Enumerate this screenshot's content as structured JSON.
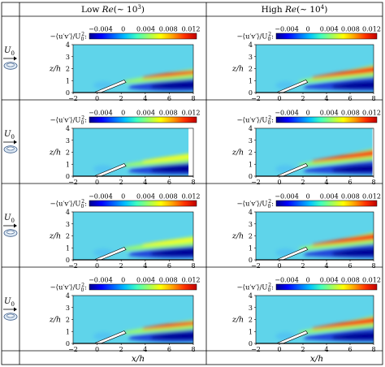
{
  "columns": [
    {
      "prefix": "Low ",
      "re": "Re",
      "tail": "(∼ 10",
      "exp": "3",
      "close": ")"
    },
    {
      "prefix": "High ",
      "re": "Re",
      "tail": "(∼ 10",
      "exp": "4",
      "close": ")"
    }
  ],
  "row_labels": [
    {
      "symbol": "U",
      "sub": "0"
    },
    {
      "symbol": "U",
      "sub": "0"
    },
    {
      "symbol": "U",
      "sub": "0"
    },
    {
      "symbol": "U",
      "sub": "0"
    }
  ],
  "colorbar": {
    "label": "−⟨u′v′⟩/U",
    "label_sub": "0",
    "label_sup": "2",
    "label_colon": ":",
    "ticks": [
      -0.004,
      0,
      0.004,
      0.008,
      0.012
    ],
    "tick_labels": [
      "−0.004",
      "0",
      "0.004",
      "0.008",
      "0.012"
    ],
    "range": [
      -0.006,
      0.013
    ],
    "colors": [
      "#00008f",
      "#0000ff",
      "#0060ff",
      "#00c0ff",
      "#40ffbf",
      "#9fff60",
      "#ffff00",
      "#ff9f00",
      "#ff3000",
      "#bf0000"
    ]
  },
  "xlabel": "x/h",
  "chart_data": [
    {
      "type": "heatmap",
      "row": 1,
      "column": "Low Re(∼10^3)",
      "ylabel": "z/h",
      "xlim": [
        -2,
        8
      ],
      "ylim": [
        0,
        4
      ],
      "xticks": [
        -2,
        0,
        2,
        4,
        6,
        8
      ],
      "yticks": [
        0,
        1,
        2,
        3,
        4
      ],
      "background": 0.0003
    },
    {
      "type": "heatmap",
      "row": 1,
      "column": "High Re(∼10^4)",
      "ylabel": "z/h",
      "xlim": [
        -2,
        8
      ],
      "ylim": [
        0,
        4
      ],
      "xticks": [
        -2,
        0,
        2,
        4,
        6,
        8
      ],
      "yticks": [
        0,
        1,
        2,
        3,
        4
      ],
      "background": 0.0003
    },
    {
      "type": "heatmap",
      "row": 2,
      "column": "Low Re(∼10^3)",
      "ylabel": "z/h",
      "xlim": [
        -2,
        8
      ],
      "ylim": [
        0,
        4
      ],
      "xticks": [
        -2,
        0,
        2,
        4,
        6,
        8
      ],
      "yticks": [
        0,
        1,
        2,
        3,
        4
      ],
      "background": 0.0003
    },
    {
      "type": "heatmap",
      "row": 2,
      "column": "High Re(∼10^4)",
      "ylabel": "z/h",
      "xlim": [
        -2,
        8
      ],
      "ylim": [
        0,
        4
      ],
      "xticks": [
        -2,
        0,
        2,
        4,
        6,
        8
      ],
      "yticks": [
        0,
        1,
        2,
        3,
        4
      ],
      "background": 0.0003
    },
    {
      "type": "heatmap",
      "row": 3,
      "column": "Low Re(∼10^3)",
      "ylabel": "z/h",
      "xlim": [
        -2,
        8
      ],
      "ylim": [
        0,
        4
      ],
      "xticks": [
        -2,
        0,
        2,
        4,
        6,
        8
      ],
      "yticks": [
        0,
        1,
        2,
        3,
        4
      ],
      "background": 0.0003
    },
    {
      "type": "heatmap",
      "row": 3,
      "column": "High Re(∼10^4)",
      "ylabel": "z/h",
      "xlim": [
        -2,
        8
      ],
      "ylim": [
        0,
        4
      ],
      "xticks": [
        -2,
        0,
        2,
        4,
        6,
        8
      ],
      "yticks": [
        0,
        1,
        2,
        3,
        4
      ],
      "background": 0.0003
    },
    {
      "type": "heatmap",
      "row": 4,
      "column": "Low Re(∼10^3)",
      "ylabel": "z/h",
      "xlim": [
        -2,
        8
      ],
      "ylim": [
        0,
        4
      ],
      "xticks": [
        -2,
        0,
        2,
        4,
        6,
        8
      ],
      "yticks": [
        0,
        1,
        2,
        3,
        4
      ],
      "background": 0.0003
    },
    {
      "type": "heatmap",
      "row": 4,
      "column": "High Re(∼10^4)",
      "ylabel": "z/h",
      "xlim": [
        -2,
        8
      ],
      "ylim": [
        0,
        4
      ],
      "xticks": [
        -2,
        0,
        2,
        4,
        6,
        8
      ],
      "yticks": [
        0,
        1,
        2,
        3,
        4
      ],
      "background": 0.0003
    }
  ]
}
